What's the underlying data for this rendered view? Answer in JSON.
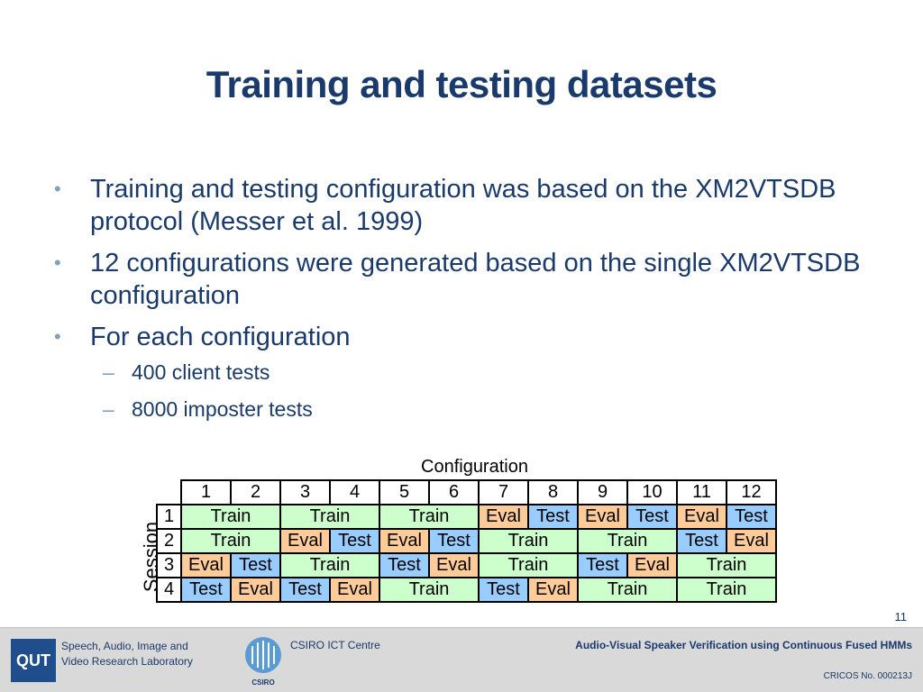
{
  "slide": {
    "title": "Training and testing datasets",
    "bullets": [
      "Training and testing configuration was based on the XM2VTSDB protocol (Messer et al. 1999)",
      "12 configurations were generated based on the single XM2VTSDB configuration",
      "For each configuration"
    ],
    "sub_bullets": [
      "400 client tests",
      "8000 imposter tests"
    ],
    "bullet_marker": "•",
    "sub_marker": "–",
    "page_number": "11"
  },
  "table": {
    "heading": "Configuration",
    "row_axis_label": "Session",
    "columns": [
      "1",
      "2",
      "3",
      "4",
      "5",
      "6",
      "7",
      "8",
      "9",
      "10",
      "11",
      "12"
    ],
    "rows": [
      {
        "session": "1",
        "cells": [
          {
            "label": "Train",
            "span": 2,
            "kind": "train"
          },
          {
            "label": "Train",
            "span": 2,
            "kind": "train"
          },
          {
            "label": "Train",
            "span": 2,
            "kind": "train"
          },
          {
            "label": "Eval",
            "span": 1,
            "kind": "eval"
          },
          {
            "label": "Test",
            "span": 1,
            "kind": "test"
          },
          {
            "label": "Eval",
            "span": 1,
            "kind": "eval"
          },
          {
            "label": "Test",
            "span": 1,
            "kind": "test"
          },
          {
            "label": "Eval",
            "span": 1,
            "kind": "eval"
          },
          {
            "label": "Test",
            "span": 1,
            "kind": "test"
          }
        ]
      },
      {
        "session": "2",
        "cells": [
          {
            "label": "Train",
            "span": 2,
            "kind": "train"
          },
          {
            "label": "Eval",
            "span": 1,
            "kind": "eval"
          },
          {
            "label": "Test",
            "span": 1,
            "kind": "test"
          },
          {
            "label": "Eval",
            "span": 1,
            "kind": "eval"
          },
          {
            "label": "Test",
            "span": 1,
            "kind": "test"
          },
          {
            "label": "Train",
            "span": 2,
            "kind": "train"
          },
          {
            "label": "Train",
            "span": 2,
            "kind": "train"
          },
          {
            "label": "Test",
            "span": 1,
            "kind": "test"
          },
          {
            "label": "Eval",
            "span": 1,
            "kind": "eval"
          }
        ]
      },
      {
        "session": "3",
        "cells": [
          {
            "label": "Eval",
            "span": 1,
            "kind": "eval"
          },
          {
            "label": "Test",
            "span": 1,
            "kind": "test"
          },
          {
            "label": "Train",
            "span": 2,
            "kind": "train"
          },
          {
            "label": "Test",
            "span": 1,
            "kind": "test"
          },
          {
            "label": "Eval",
            "span": 1,
            "kind": "eval"
          },
          {
            "label": "Train",
            "span": 2,
            "kind": "train"
          },
          {
            "label": "Test",
            "span": 1,
            "kind": "test"
          },
          {
            "label": "Eval",
            "span": 1,
            "kind": "eval"
          },
          {
            "label": "Train",
            "span": 2,
            "kind": "train"
          }
        ]
      },
      {
        "session": "4",
        "cells": [
          {
            "label": "Test",
            "span": 1,
            "kind": "test"
          },
          {
            "label": "Eval",
            "span": 1,
            "kind": "eval"
          },
          {
            "label": "Test",
            "span": 1,
            "kind": "test"
          },
          {
            "label": "Eval",
            "span": 1,
            "kind": "eval"
          },
          {
            "label": "Train",
            "span": 2,
            "kind": "train"
          },
          {
            "label": "Test",
            "span": 1,
            "kind": "test"
          },
          {
            "label": "Eval",
            "span": 1,
            "kind": "eval"
          },
          {
            "label": "Train",
            "span": 2,
            "kind": "train"
          },
          {
            "label": "Train",
            "span": 2,
            "kind": "train"
          }
        ]
      }
    ],
    "colors": {
      "train": "#ccffcc",
      "eval": "#ffcc99",
      "test": "#99ccff"
    }
  },
  "footer": {
    "qut_logo_text": "QUT",
    "lab_name_line1": "Speech, Audio, Image and",
    "lab_name_line2": "Video Research Laboratory",
    "csiro_logo_text": "CSIRO",
    "csiro_centre": "CSIRO ICT Centre",
    "talk_title": "Audio-Visual Speaker Verification using Continuous Fused HMMs",
    "cricos": "CRICOS No. 000213J"
  },
  "colors": {
    "title": "#1a3a6b",
    "footer_bg": "#d9d9d9",
    "qut_blue": "#1f4e8c"
  }
}
